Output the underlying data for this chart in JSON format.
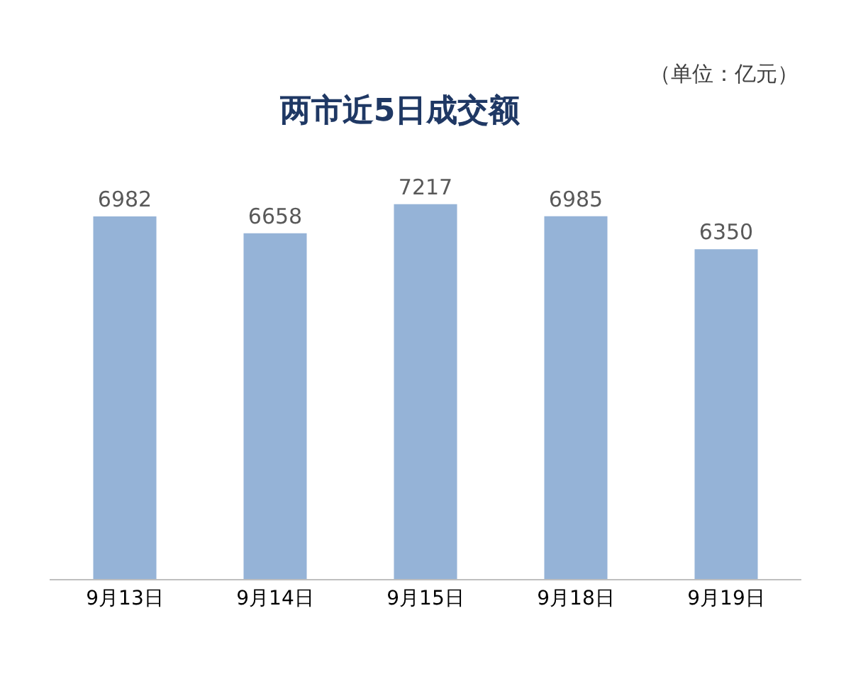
{
  "chart_data": {
    "type": "bar",
    "title": "两市近5日成交额",
    "annotations": [
      "（单位：亿元）"
    ],
    "categories": [
      "9月13日",
      "9月14日",
      "9月15日",
      "9月18日",
      "9月19日"
    ],
    "values": [
      6982,
      6658,
      7217,
      6985,
      6350
    ],
    "color": "#95b3d7",
    "data_labels": true,
    "legend": false,
    "tick_labels": "x"
  }
}
